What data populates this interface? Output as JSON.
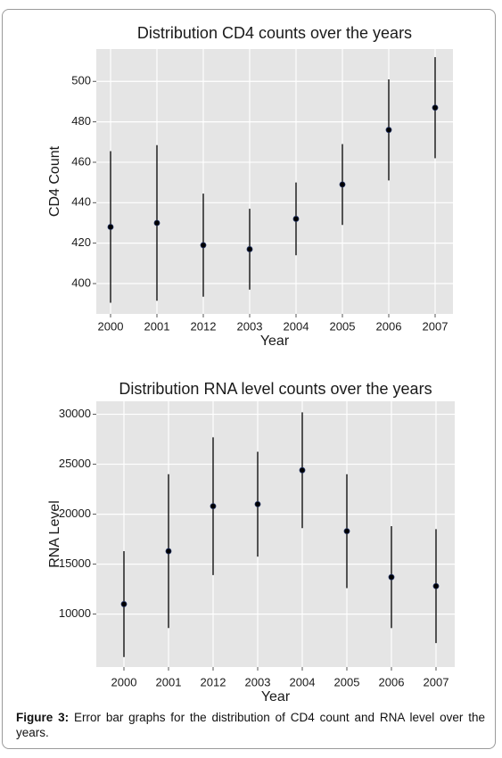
{
  "chart_data": [
    {
      "type": "errorbar",
      "title": "Distribution CD4 counts over the years",
      "x_label": "Year",
      "y_label": "CD4 Count",
      "categories": [
        "2000",
        "2001",
        "2012",
        "2003",
        "2004",
        "2005",
        "2006",
        "2007"
      ],
      "values": [
        428,
        430,
        419,
        417,
        432,
        449,
        476,
        487
      ],
      "errors": [
        37.5,
        38.5,
        25.5,
        20,
        18,
        20,
        25,
        25
      ],
      "ylim": [
        385,
        516
      ],
      "yticks": [
        400,
        420,
        440,
        460,
        480,
        500
      ],
      "grid": true,
      "color": "#000000"
    },
    {
      "type": "errorbar",
      "title": "Distribution RNA level counts over the years",
      "x_label": "Year",
      "y_label": "RNA Level",
      "categories": [
        "2000",
        "2001",
        "2012",
        "2003",
        "2004",
        "2005",
        "2006",
        "2007"
      ],
      "values": [
        11000,
        16300,
        20800,
        21000,
        24400,
        18300,
        13700,
        12800
      ],
      "errors": [
        5300,
        7700,
        6900,
        5250,
        5800,
        5700,
        5100,
        5700
      ],
      "ylim": [
        4700,
        31300
      ],
      "yticks": [
        10000,
        15000,
        20000,
        25000,
        30000
      ],
      "grid": true,
      "color": "#000000"
    }
  ],
  "caption": {
    "label": "Figure 3:",
    "text": "Error bar graphs for the distribution of CD4 count and RNA level over the years."
  }
}
